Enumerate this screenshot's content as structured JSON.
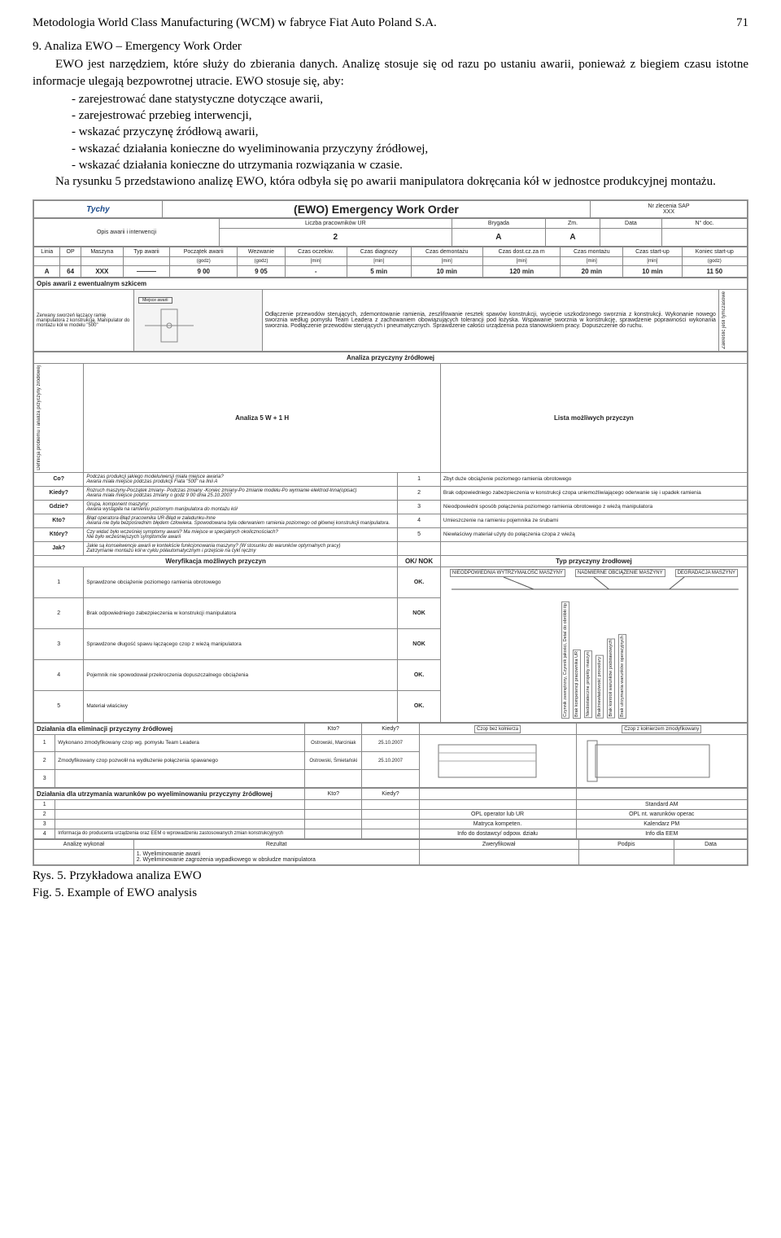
{
  "header": {
    "title": "Metodologia World Class Manufacturing (WCM) w fabryce Fiat Auto Poland S.A.",
    "page": "71"
  },
  "body": {
    "p1": "9. Analiza EWO – Emergency Work Order",
    "p2": "EWO jest narzędziem, które służy do zbierania danych. Analizę stosuje się od razu po ustaniu awarii, ponieważ z biegiem czasu istotne informacje ulegają bezpowrotnej utracie. EWO stosuje się, aby:",
    "bullets": [
      "zarejestrować dane statystyczne dotyczące awarii,",
      "zarejestrować przebieg interwencji,",
      "wskazać przyczynę źródłową awarii,",
      "wskazać działania konieczne do wyeliminowania przyczyny źródłowej,",
      "wskazać działania konieczne do utrzymania rozwiązania w czasie."
    ],
    "p3": "Na rysunku 5 przedstawiono analizę EWO, która odbyła się po awarii manipulatora dokręcania kół w jednostce produkcyjnej montażu."
  },
  "form": {
    "logo": "Tychy",
    "title": "(EWO) Emergency Work Order",
    "sap_label": "Nr zlecenia SAP",
    "sap_val": "XXX",
    "top_headers": [
      "Liczba pracowników UR",
      "Brygada",
      "Zm.",
      "Data",
      "N° doc."
    ],
    "opis_label": "Opis awarii i interwencji",
    "top_vals": [
      "2",
      "A",
      "A",
      "",
      ""
    ],
    "row2_h": [
      "Linia",
      "OP",
      "Maszyna",
      "Typ awarii",
      "Początek awarii",
      "Wezwanie",
      "Czas oczekiw.",
      "Czas diagnozy",
      "Czas demontażu",
      "Czas dost.cz.za m",
      "Czas montażu",
      "Czas start-up",
      "Koniec start-up"
    ],
    "row2_u": [
      "",
      "",
      "",
      "",
      "(godz)",
      "(godz)",
      "[min]",
      "[min]",
      "[min]",
      "[min]",
      "[min]",
      "[min]",
      "(godz)"
    ],
    "row2_v": [
      "A",
      "64",
      "XXX",
      "———",
      "9 00",
      "9 05",
      "-",
      "5 min",
      "10 min",
      "120 min",
      "20 min",
      "10 min",
      "11 50"
    ],
    "sketch_head": "Opis awarii z ewentualnym szkicem",
    "sketch_left": "Zerwany sworzeń łączący ramię manipulatora z konstrukcją. Manipulator do montażu kół w modelu \"500\"",
    "sketch_badge": "Miejsce awarii",
    "sketch_desc": "Odłączenie przewodów sterujących, zdemontowanie ramienia, zeszlifowanie resztek spawów konstrukcji, wycięcie uszkodzonego sworznia z konstrukcji. Wykonanie nowego sworznia według pomysłu Team Leadera z zachowaniem obowiązujących tolerancji pod łożyska. Wspawanie sworznia w konstrukcję, sprawdzenie poprawności wykonania sworznia. Podłączenie przewodów sterujących i pneumatycznych. Sprawdzenie całości urządzenia poza stanowiskiem pracy. Dopuszczenie do ruchu.",
    "sketch_side": "Zakreślić jeśli tymczasowe",
    "root_head": "Analiza przyczyny źródłowej",
    "anal_head": "Analiza 5 W + 1 H",
    "list_head": "Lista możliwych przyczyn",
    "qa": [
      {
        "q": "Co?",
        "a": "Podczas produkcji jakiego modelu/wersji miała miejsce awaria?\nAwaria miała miejsce podczas produkcji Fiata \"500\" na linii A",
        "n": "1",
        "r": "Zbyt duże obciążenie poziomego ramienia obrotowego"
      },
      {
        "q": "Kiedy?",
        "a": "Rozruch maszyny-Początek zmiany- Podczas zmiany -Koniec zmiany-Po zmianie modelu-Po wymianie elektrod-Inna(opisać)\nAwaria miała miejsce podczas zmiany o godz 9 00 dnia 25.10.2007",
        "n": "2",
        "r": "Brak odpowiedniego zabezpieczenia w konstrukcji czopa uniemożliwiającego oderwanie się i upadek ramienia"
      },
      {
        "q": "Gdzie?",
        "a": "Grupa, komponent maszyny:\nAwaria wystąpiła na ramieniu poziomym manipulatora do montażu kół",
        "n": "3",
        "r": "Nieodpowiedni sposób połączenia poziomego ramienia obrotowego z wieżą manipulatora"
      },
      {
        "q": "Kto?",
        "a": "Błąd operatora-Błąd pracownika UR-Błąd w załadunku-Inne\nAwaria nie była bezpośrednim błędem człowieka. Spowodowana była oderwaniem ramienia poziomego od głównej konstrukcji manipulatora.",
        "n": "4",
        "r": "Umieszczenie na ramieniu pojemnika ze śrubami"
      },
      {
        "q": "Który?",
        "a": "Czy widać było wcześniej symptomy awarii? Ma miejsce w specjalnych okolicznościach?\nNie było wcześniejszych symptomów awarii",
        "n": "5",
        "r": "Niewłaściwy materiał użyty do połączenia czopa z wieżą"
      },
      {
        "q": "Jak?",
        "a": "Jakie są konsekwencje awarii w kontekście funkcjonowania maszyny? (W stosunku do warunków optymalnych pracy)\nZatrzymanie montażu kół w cyklu półautomatycznym i przejście na cykl ręczny",
        "n": "",
        "r": ""
      }
    ],
    "left_strip": "Definicja problemu i analiza przyczyny źródłowej",
    "verif_head": "Weryfikacja możliwych przyczyn",
    "ok_head": "OK/ NOK",
    "type_head": "Typ przyczyny żrodłowej",
    "verif": [
      {
        "n": "1",
        "t": "Sprawdzone obciążenie poziomego ramienia obrotowego",
        "v": "OK."
      },
      {
        "n": "2",
        "t": "Brak odpowiedniego zabezpieczenia w konstrukcji manipulatora",
        "v": "NOK"
      },
      {
        "n": "3",
        "t": "Sprawdzone długość spawu łączącego czop z wieżą manipulatora",
        "v": "NOK"
      },
      {
        "n": "4",
        "t": "Pojemnik nie spowodował przekroczenia dopuszczalnego obciążenia",
        "v": "OK."
      },
      {
        "n": "5",
        "t": "Materiał właściwy",
        "v": "OK."
      }
    ],
    "fish_top": [
      "NIEODPOWIEDNIA WYTRZYMAŁOŚĆ MASZYNY",
      "NADMIERNE OBCIĄŻENIE MASZYNY",
      "DEGRADACJA MASZYNY"
    ],
    "fish_bot": [
      "Czynnik zewnętrzny, Czynnik jakości, Detal do obróbki itp",
      "Brak kompetencji pracownika UR",
      "Niedostateczne projekty maszyn",
      "Brak/niewłaściwość procedury",
      "Brak kontroli warunków podstawowych",
      "Brak utrzymania warunków operacyjnych"
    ],
    "elim_head": "Działania dla eliminacji przyczyny źródłowej",
    "kto": "Kto?",
    "kiedy": "Kiedy?",
    "elim_d1": "Czop bez kołnierza",
    "elim_d2": "Czop z kołnierzem zmodyfikowany",
    "elim": [
      {
        "n": "1",
        "t": "Wykonano zmodyfikowany czop wg. pomysłu Team Leadera",
        "k": "Ostrowski, Marciniak",
        "d": "25.10.2007"
      },
      {
        "n": "2",
        "t": "Zmodyfikowany czop pozwolił na wydłużenie połączenia spawanego",
        "k": "Ostrowski, Śmietański",
        "d": "25.10.2007"
      },
      {
        "n": "3",
        "t": "",
        "k": "",
        "d": ""
      }
    ],
    "maint_head": "Działania dla utrzymania warunków po wyeliminowaniu przyczyny źródłowej",
    "maint_boxes_r1": [
      "",
      "Standard AM"
    ],
    "maint_boxes_r2": [
      "OPL operator lub UR",
      "OPL nt. warunków operac"
    ],
    "maint_boxes_r3": [
      "Matryca kompeten.",
      "Kalendarz PM"
    ],
    "maint_boxes_r4": [
      "Info do dostawcy/ odpow. działu",
      "Info dla EEM"
    ],
    "maint_row4": "Informacja do producenta urządzenia oraz EEM o wprowadzeniu zastosowanych zmian konstrukcyjnych",
    "footer_h": [
      "Analizę wykonał",
      "Rezultat",
      "Zweryfikował",
      "Podpis",
      "Data"
    ],
    "footer_r": "1. Wyeliminowanie awarii\n2. Wyeliminowanie zagrożenia wypadkowego w obsłudze manipulatora"
  },
  "caption": {
    "pl": "Rys. 5. Przykładowa analiza EWO",
    "en": "Fig. 5. Example of EWO analysis"
  }
}
